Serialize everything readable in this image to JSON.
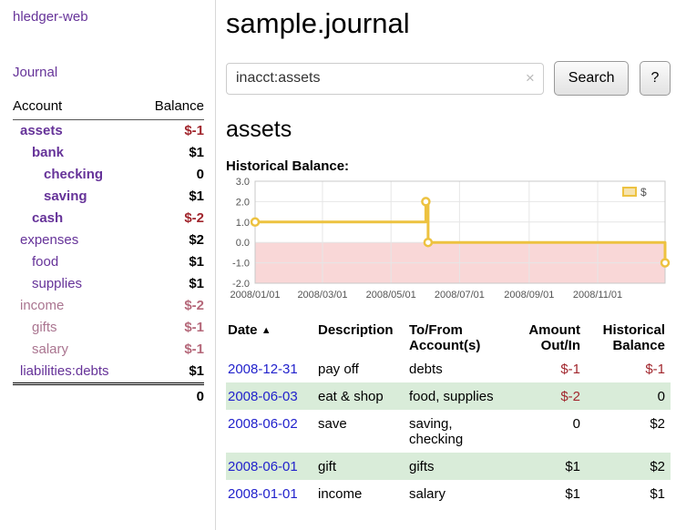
{
  "colors": {
    "link_purple": "#663399",
    "visited_purple": "#aa7590",
    "negative_red": "#a1262d",
    "faded_red": "#b5687a",
    "date_blue": "#2222cc",
    "row_stripe_green": "#d9ecd9"
  },
  "sidebar": {
    "brand": "hledger-web",
    "journal_link": "Journal",
    "columns": {
      "account": "Account",
      "balance": "Balance"
    },
    "accounts": [
      {
        "name": "assets",
        "balance": "$-1",
        "indent": 0,
        "in_query": true
      },
      {
        "name": "bank",
        "balance": "$1",
        "indent": 1,
        "in_query": true
      },
      {
        "name": "checking",
        "balance": "0",
        "indent": 2,
        "in_query": true
      },
      {
        "name": "saving",
        "balance": "$1",
        "indent": 2,
        "in_query": true
      },
      {
        "name": "cash",
        "balance": "$-2",
        "indent": 1,
        "in_query": true
      },
      {
        "name": "expenses",
        "balance": "$2",
        "indent": 0
      },
      {
        "name": "food",
        "balance": "$1",
        "indent": 1
      },
      {
        "name": "supplies",
        "balance": "$1",
        "indent": 1
      },
      {
        "name": "income",
        "balance": "$-2",
        "indent": 0,
        "visited": true
      },
      {
        "name": "gifts",
        "balance": "$-1",
        "indent": 1,
        "visited": true
      },
      {
        "name": "salary",
        "balance": "$-1",
        "indent": 1,
        "visited": true
      },
      {
        "name": "liabilities:debts",
        "balance": "$1",
        "indent": 0
      }
    ],
    "total": "0"
  },
  "main": {
    "title": "sample.journal",
    "search": {
      "value": "inacct:assets",
      "clear_icon": "×",
      "button": "Search",
      "help": "?"
    },
    "account_heading": "assets",
    "chart_title": "Historical Balance:"
  },
  "chart_data": {
    "type": "line",
    "step": true,
    "title": "Historical Balance",
    "x_range": [
      "2008-01-01",
      "2008-12-31"
    ],
    "y_range": [
      -2,
      3
    ],
    "y_ticks": [
      3,
      2,
      1,
      0,
      -1,
      -2
    ],
    "x_ticks": [
      {
        "date": "2008-01-01",
        "label": "2008/01/01"
      },
      {
        "date": "2008-03-01",
        "label": "2008/03/01"
      },
      {
        "date": "2008-05-01",
        "label": "2008/05/01"
      },
      {
        "date": "2008-07-01",
        "label": "2008/07/01"
      },
      {
        "date": "2008-09-01",
        "label": "2008/09/01"
      },
      {
        "date": "2008-11-01",
        "label": "2008/11/01"
      }
    ],
    "series": [
      {
        "name": "$",
        "color": "#edc240",
        "points": [
          {
            "date": "2008-01-01",
            "value": 1
          },
          {
            "date": "2008-06-01",
            "value": 2
          },
          {
            "date": "2008-06-03",
            "value": 0
          },
          {
            "date": "2008-12-31",
            "value": -1
          }
        ]
      }
    ],
    "negative_region_color": "#f9d7d7",
    "legend": {
      "label": "$",
      "position": "top-right"
    }
  },
  "register": {
    "headers": {
      "date": "Date",
      "sort_icon": "▲",
      "description": "Description",
      "account": "To/From Account(s)",
      "amount": "Amount Out/In",
      "balance": "Historical Balance"
    },
    "rows": [
      {
        "date": "2008-12-31",
        "description": "pay off",
        "account": "debts",
        "amount": "$-1",
        "balance": "$-1"
      },
      {
        "date": "2008-06-03",
        "description": "eat & shop",
        "account": "food, supplies",
        "amount": "$-2",
        "balance": "0"
      },
      {
        "date": "2008-06-02",
        "description": "save",
        "account": "saving, checking",
        "amount": "0",
        "balance": "$2"
      },
      {
        "date": "2008-06-01",
        "description": "gift",
        "account": "gifts",
        "amount": "$1",
        "balance": "$2"
      },
      {
        "date": "2008-01-01",
        "description": "income",
        "account": "salary",
        "amount": "$1",
        "balance": "$1"
      }
    ]
  }
}
